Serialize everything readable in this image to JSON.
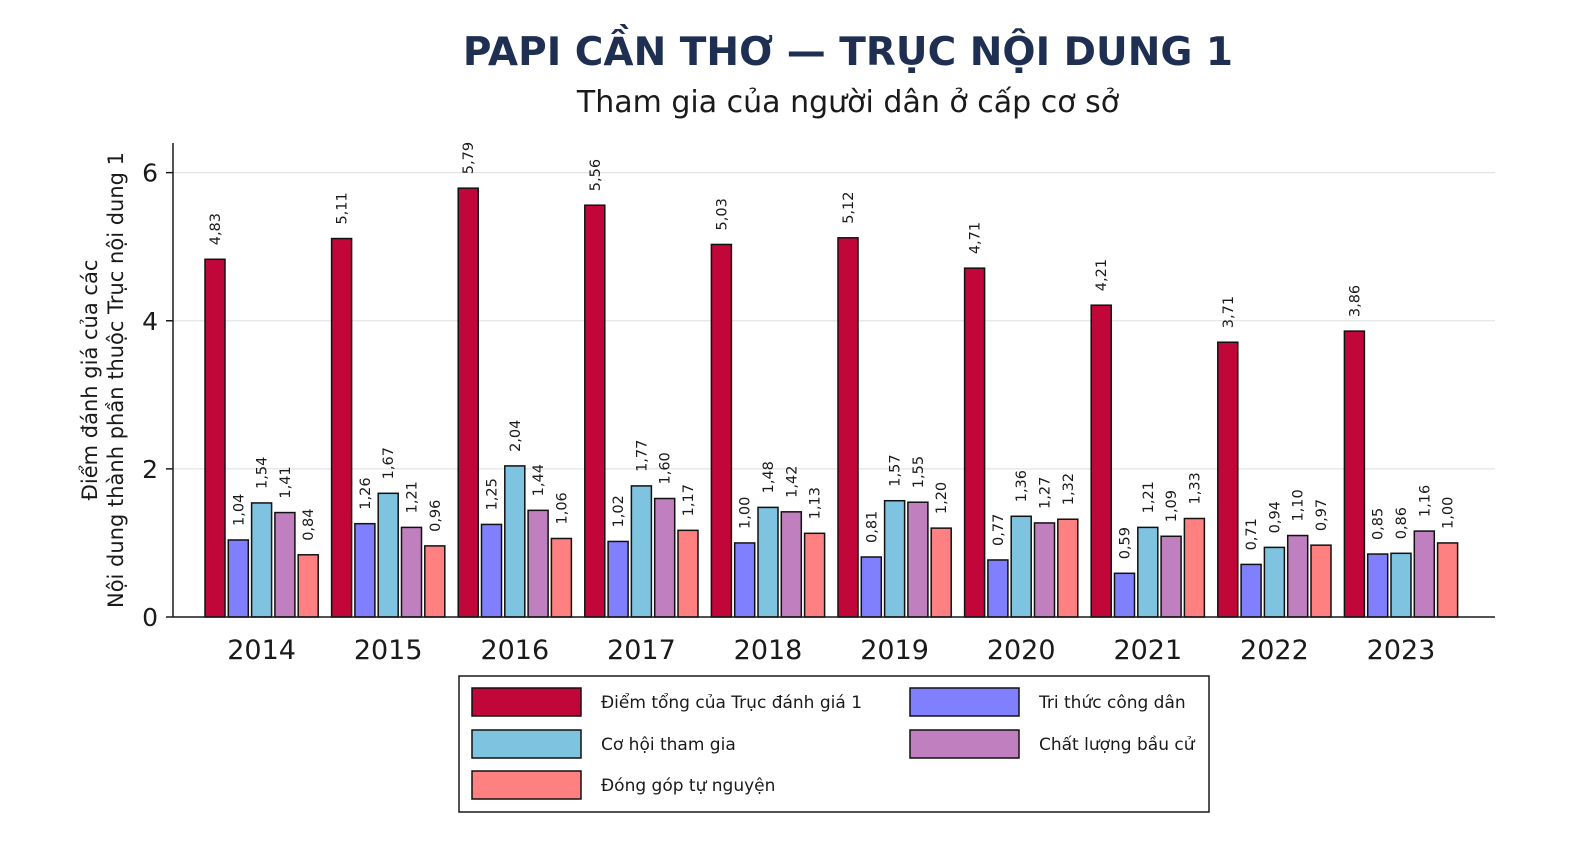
{
  "chart_data": {
    "type": "bar",
    "title": "PAPI CẦN THƠ — TRỤC NỘI DUNG 1",
    "subtitle": "Tham gia của người dân ở cấp cơ sở",
    "ylabel_line1": "Điểm đánh giá của các",
    "ylabel_line2": "Nội dung thành phần thuộc Trục nội dung 1",
    "xlabel": "",
    "ylim": [
      0,
      6.4
    ],
    "yticks": [
      0,
      2,
      4,
      6
    ],
    "grid": true,
    "legend_position": "bottom",
    "categories": [
      "2014",
      "2015",
      "2016",
      "2017",
      "2018",
      "2019",
      "2020",
      "2021",
      "2022",
      "2023"
    ],
    "series": [
      {
        "name": "Điểm tổng của Trục đánh giá 1",
        "color": "#c1073a",
        "values": [
          4.83,
          5.11,
          5.79,
          5.56,
          5.03,
          5.12,
          4.71,
          4.21,
          3.71,
          3.86
        ],
        "labels": [
          "4,83",
          "5,11",
          "5,79",
          "5,56",
          "5,03",
          "5,12",
          "4,71",
          "4,21",
          "3,71",
          "3,86"
        ]
      },
      {
        "name": "Tri thức công dân",
        "color": "#8080ff",
        "values": [
          1.04,
          1.26,
          1.25,
          1.02,
          1.0,
          0.81,
          0.77,
          0.59,
          0.71,
          0.85
        ],
        "labels": [
          "1,04",
          "1,26",
          "1,25",
          "1,02",
          "1,00",
          "0,81",
          "0,77",
          "0,59",
          "0,71",
          "0,85"
        ]
      },
      {
        "name": "Cơ hội tham gia",
        "color": "#7ec3e0",
        "values": [
          1.54,
          1.67,
          2.04,
          1.77,
          1.48,
          1.57,
          1.36,
          1.21,
          0.94,
          0.86
        ],
        "labels": [
          "1,54",
          "1,67",
          "2,04",
          "1,77",
          "1,48",
          "1,57",
          "1,36",
          "1,21",
          "0,94",
          "0,86"
        ]
      },
      {
        "name": "Chất lượng bầu cử",
        "color": "#c080c0",
        "values": [
          1.41,
          1.21,
          1.44,
          1.6,
          1.42,
          1.55,
          1.27,
          1.09,
          1.1,
          1.16
        ],
        "labels": [
          "1,41",
          "1,21",
          "1,44",
          "1,60",
          "1,42",
          "1,55",
          "1,27",
          "1,09",
          "1,10",
          "1,16"
        ]
      },
      {
        "name": "Đóng góp tự nguyện",
        "color": "#ff8080",
        "values": [
          0.84,
          0.96,
          1.06,
          1.17,
          1.13,
          1.2,
          1.32,
          1.33,
          0.97,
          1.0
        ],
        "labels": [
          "0,84",
          "0,96",
          "1,06",
          "1,17",
          "1,13",
          "1,20",
          "1,32",
          "1,33",
          "0,97",
          "1,00"
        ]
      }
    ]
  }
}
